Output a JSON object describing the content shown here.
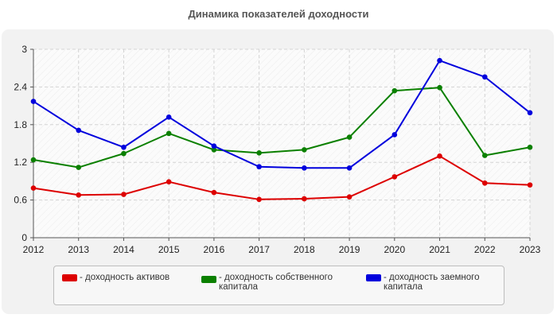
{
  "chart_data": {
    "type": "line",
    "title": "Динамика показателей доходности",
    "x": [
      "2012",
      "2013",
      "2014",
      "2015",
      "2016",
      "2017",
      "2018",
      "2019",
      "2020",
      "2021",
      "2022",
      "2023"
    ],
    "ylim": [
      0,
      3
    ],
    "yticks": [
      "0",
      "0.6",
      "1.2",
      "1.8",
      "2.4",
      "3"
    ],
    "grid": true,
    "legend_position": "bottom",
    "series": [
      {
        "name": "- доходность активов",
        "color": "#dd0000",
        "values": [
          0.79,
          0.68,
          0.69,
          0.89,
          0.72,
          0.61,
          0.62,
          0.65,
          0.97,
          1.3,
          0.87,
          0.84
        ]
      },
      {
        "name": "- доходность собственного капитала",
        "color": "#0b8000",
        "values": [
          1.24,
          1.12,
          1.34,
          1.66,
          1.4,
          1.35,
          1.4,
          1.6,
          2.34,
          2.39,
          1.31,
          1.44
        ]
      },
      {
        "name": "- доходность заемного капитала",
        "color": "#0000dd",
        "values": [
          2.17,
          1.71,
          1.44,
          1.92,
          1.46,
          1.13,
          1.11,
          1.11,
          1.64,
          2.82,
          2.56,
          1.99
        ]
      }
    ]
  }
}
